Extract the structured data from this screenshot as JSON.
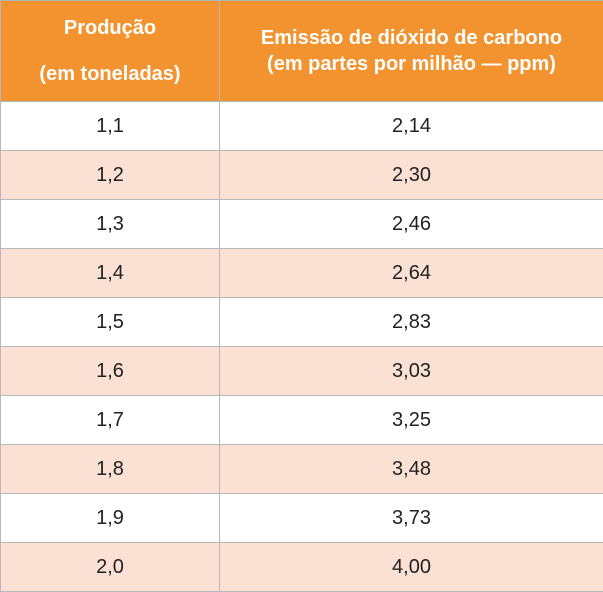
{
  "table": {
    "headers": [
      {
        "line1": "Produção",
        "line2": "(em toneladas)"
      },
      {
        "line1": "Emissão de dióxido de carbono",
        "line2": "(em partes por milhão — ppm)"
      }
    ],
    "rows": [
      [
        "1,1",
        "2,14"
      ],
      [
        "1,2",
        "2,30"
      ],
      [
        "1,3",
        "2,46"
      ],
      [
        "1,4",
        "2,64"
      ],
      [
        "1,5",
        "2,83"
      ],
      [
        "1,6",
        "3,03"
      ],
      [
        "1,7",
        "3,25"
      ],
      [
        "1,8",
        "3,48"
      ],
      [
        "1,9",
        "3,73"
      ],
      [
        "2,0",
        "4,00"
      ]
    ]
  },
  "colors": {
    "header_bg": "#f2932f",
    "header_text": "#ffffff",
    "row_alt_bg": "#fbe1d3",
    "row_bg": "#ffffff"
  }
}
